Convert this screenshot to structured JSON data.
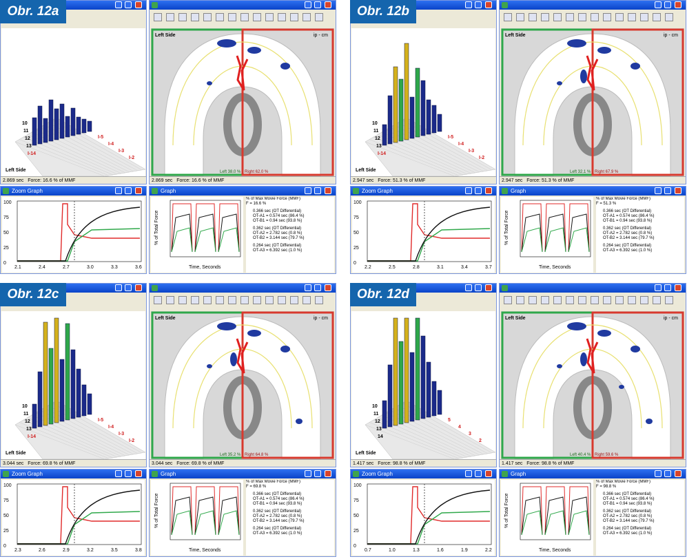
{
  "panels": [
    {
      "label": "Obr. 12a",
      "left_side": "Left Side",
      "time": "2.869 sec",
      "force": "Force: 16.6 % of MMF",
      "zoom_title": "Zoom Graph",
      "graph_title": "Graph",
      "zoom_yticks": [
        "100",
        "75",
        "50",
        "25",
        "0"
      ],
      "zoom_xticks": [
        "2.1",
        "2.4",
        "2.7",
        "3.0",
        "3.3",
        "3.6"
      ],
      "left_pct": "Left 38.0 %",
      "right_pct": "Right 62.0 %",
      "f_value": "F = 16.6 %",
      "teeth_left": [
        "10",
        "11",
        "12",
        "13",
        "I-14"
      ],
      "teeth_right": [
        "I-5",
        "I-4",
        "I-3",
        "I-2"
      ]
    },
    {
      "label": "Obr. 12b",
      "left_side": "Left Side",
      "time": "2.947 sec",
      "force": "Force: 51.3 % of MMF",
      "zoom_title": "Zoom Graph",
      "graph_title": "Graph",
      "zoom_yticks": [
        "100",
        "75",
        "50",
        "25",
        "0"
      ],
      "zoom_xticks": [
        "2.2",
        "2.5",
        "2.8",
        "3.1",
        "3.4",
        "3.7"
      ],
      "left_pct": "Left 32.1 %",
      "right_pct": "Right 67.9 %",
      "f_value": "F = 51.3 %",
      "teeth_left": [
        "10",
        "11",
        "12",
        "13",
        "I-14"
      ],
      "teeth_right": [
        "I-5",
        "I-4",
        "I-3",
        "I-2"
      ]
    },
    {
      "label": "Obr. 12c",
      "left_side": "Left Side",
      "time": "3.044 sec",
      "force": "Force: 69.8 % of MMF",
      "zoom_title": "Zoom Graph",
      "graph_title": "Graph",
      "zoom_yticks": [
        "100",
        "75",
        "50",
        "25",
        "0"
      ],
      "zoom_xticks": [
        "2.3",
        "2.6",
        "2.9",
        "3.2",
        "3.5",
        "3.8"
      ],
      "left_pct": "Left 35.2 %",
      "right_pct": "Right 64.8 %",
      "f_value": "F = 69.8 %",
      "teeth_left": [
        "10",
        "11",
        "12",
        "13",
        "I-14"
      ],
      "teeth_right": [
        "I-5",
        "I-4",
        "I-3",
        "I-2"
      ]
    },
    {
      "label": "Obr. 12d",
      "left_side": "Left Side",
      "time": "1.417 sec",
      "force": "Force: 98.8 % of MMF",
      "zoom_title": "Zoom Graph",
      "graph_title": "Graph",
      "zoom_yticks": [
        "100",
        "75",
        "50",
        "25",
        "0"
      ],
      "zoom_xticks": [
        "0.7",
        "1.0",
        "1.3",
        "1.6",
        "1.9",
        "2.2"
      ],
      "left_pct": "Left 40.4 %",
      "right_pct": "Right 59.6 %",
      "f_value": "F = 98.8 %",
      "teeth_left": [
        "10",
        "11",
        "12",
        "13",
        "14"
      ],
      "teeth_right": [
        "5",
        "4",
        "3",
        "2"
      ]
    }
  ],
  "common": {
    "legend_title": "% of Max Movie Force (MMF)",
    "legend_items": [
      "0.366 sec (OT Differential)",
      "OT-A1 = 0.574 sec (86.4 %)",
      "OT-B1 = 0.94 sec (93.8 %)",
      "0.362 sec (OT Differential)",
      "OT-A2 = 2.782 sec (0.8 %)",
      "OT-B2 = 3.144 sec (79.7 %)",
      "0.264 sec (OT Differential)",
      "OT-A3 = 6.392 sec (1.0 %)"
    ],
    "graph_ylabel": "% of Total Force",
    "graph_xlabel": "Time, Seconds",
    "arch_header_left": "Left Side",
    "arch_header_right": "ip - cm"
  },
  "colors": {
    "label_bg": "#1565ad",
    "green_frame": "#2fa84a",
    "red_frame": "#d83a2e",
    "bar_blue": "#1b2a8a",
    "bar_green": "#2fa84a",
    "bar_yellow": "#d4b11c",
    "curve_black": "#111111",
    "curve_red": "#e02a2a",
    "curve_green": "#2fa84a"
  }
}
